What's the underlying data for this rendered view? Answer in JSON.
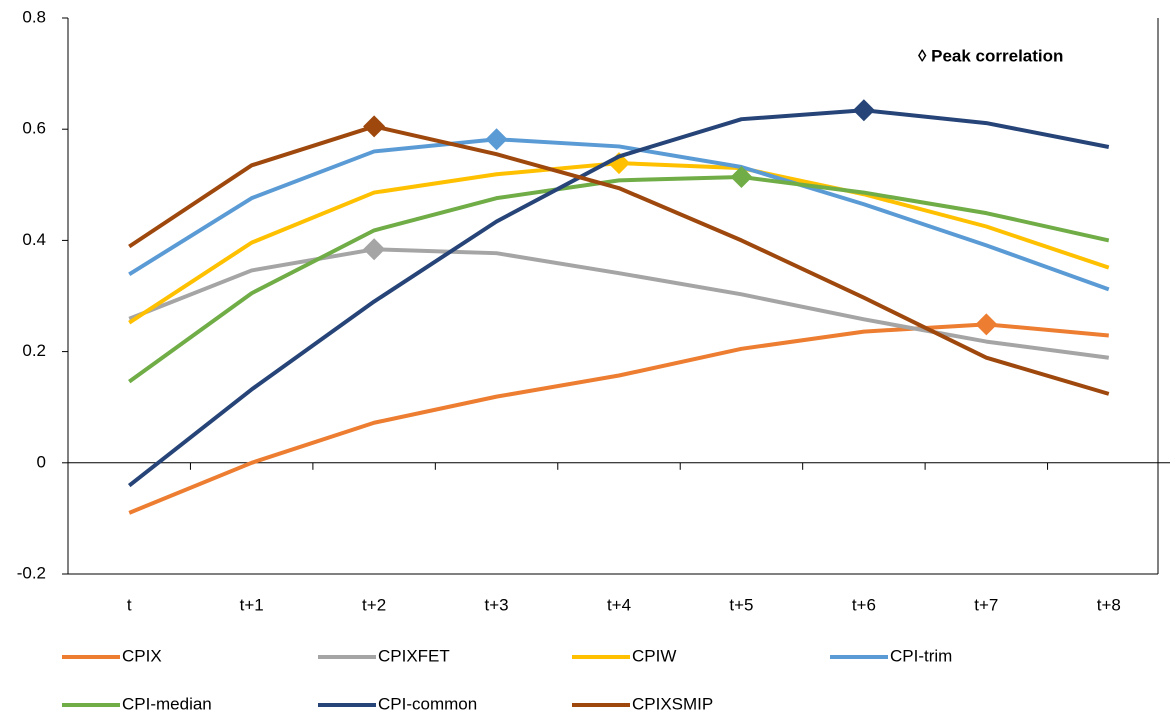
{
  "chart_data": {
    "type": "line",
    "annotation": "◊ Peak correlation",
    "categories": [
      "t",
      "t+1",
      "t+2",
      "t+3",
      "t+4",
      "t+5",
      "t+6",
      "t+7",
      "t+8"
    ],
    "ylim": [
      -0.2,
      0.8
    ],
    "yticks": [
      -0.2,
      0,
      0.2,
      0.4,
      0.6,
      0.8
    ],
    "series": [
      {
        "name": "CPIX",
        "color": "#ed7d31",
        "peak": 7,
        "values": [
          -0.09,
          0.0,
          0.072,
          0.119,
          0.157,
          0.205,
          0.236,
          0.249,
          0.229
        ]
      },
      {
        "name": "CPIXFET",
        "color": "#a5a5a5",
        "peak": 2,
        "values": [
          0.259,
          0.346,
          0.384,
          0.377,
          0.341,
          0.303,
          0.258,
          0.218,
          0.189
        ]
      },
      {
        "name": "CPIW",
        "color": "#ffc000",
        "peak": 4,
        "values": [
          0.252,
          0.396,
          0.486,
          0.519,
          0.539,
          0.53,
          0.483,
          0.425,
          0.351
        ]
      },
      {
        "name": "CPI-trim",
        "color": "#5b9bd5",
        "peak": 3,
        "values": [
          0.339,
          0.476,
          0.56,
          0.582,
          0.569,
          0.532,
          0.465,
          0.391,
          0.312
        ]
      },
      {
        "name": "CPI-median",
        "color": "#70ad47",
        "peak": 5,
        "values": [
          0.146,
          0.305,
          0.418,
          0.476,
          0.508,
          0.514,
          0.486,
          0.449,
          0.4
        ]
      },
      {
        "name": "CPI-common",
        "color": "#264478",
        "peak": 6,
        "values": [
          -0.041,
          0.132,
          0.29,
          0.434,
          0.551,
          0.618,
          0.634,
          0.611,
          0.568
        ]
      },
      {
        "name": "CPIXSMIP",
        "color": "#9e480e",
        "peak": 2,
        "values": [
          0.389,
          0.535,
          0.605,
          0.555,
          0.494,
          0.4,
          0.297,
          0.189,
          0.124
        ]
      }
    ]
  }
}
